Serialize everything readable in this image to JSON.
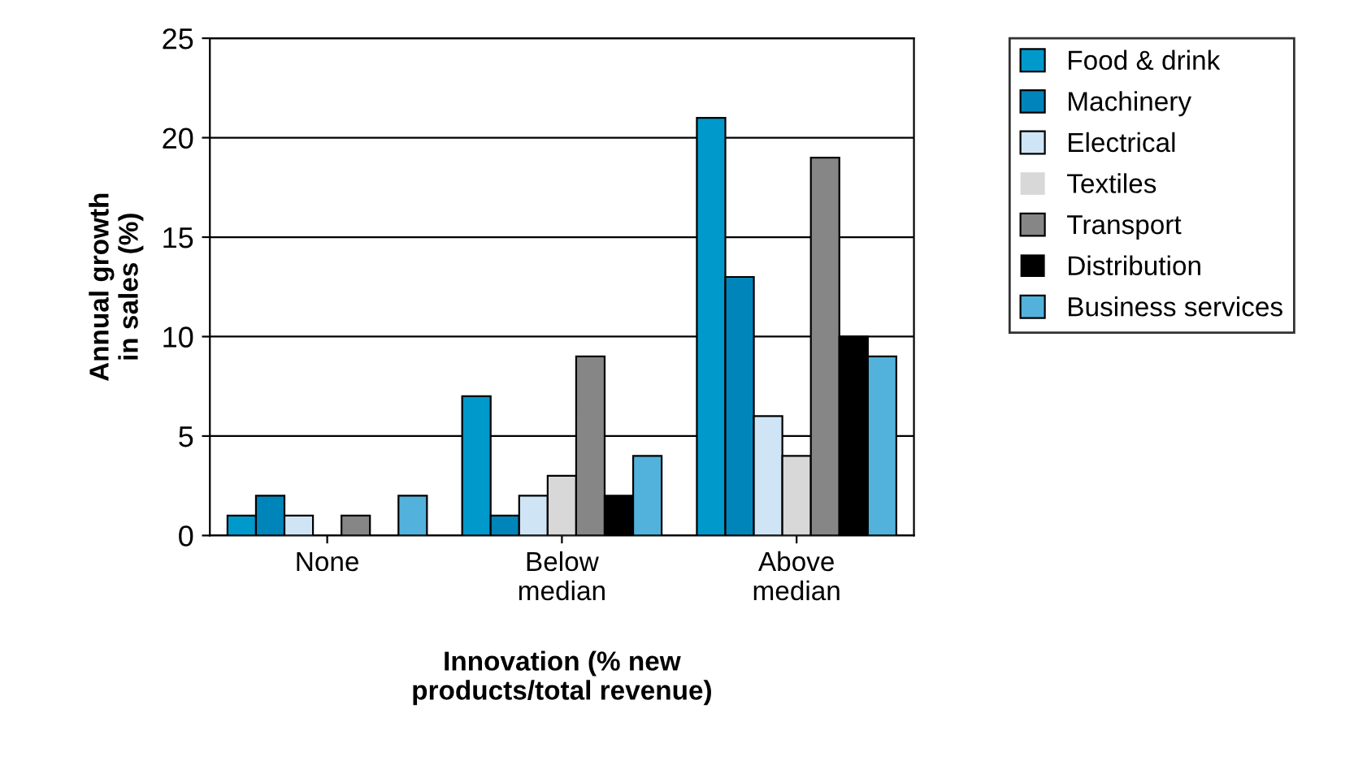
{
  "chart_data": {
    "type": "bar",
    "xlabel": "Innovation (% new\nproducts/total revenue)",
    "ylabel": "Annual growth\nin sales (%)",
    "categories": [
      "None",
      "Below\nmedian",
      "Above\nmedian"
    ],
    "series": [
      {
        "name": "Food & drink",
        "color": "#0099cc",
        "values": [
          1,
          7,
          21
        ]
      },
      {
        "name": "Machinery",
        "color": "#0085bb",
        "values": [
          2,
          1,
          13
        ]
      },
      {
        "name": "Electrical",
        "color": "#cfe5f5",
        "values": [
          1,
          2,
          6
        ]
      },
      {
        "name": "Textiles",
        "color": "#d8d8d8",
        "values": [
          0,
          3,
          4
        ]
      },
      {
        "name": "Transport",
        "color": "#868686",
        "values": [
          1,
          9,
          19
        ]
      },
      {
        "name": "Distribution",
        "color": "#000000",
        "values": [
          0,
          2,
          10
        ]
      },
      {
        "name": "Business services",
        "color": "#52b2dc",
        "values": [
          2,
          4,
          9
        ]
      }
    ],
    "ylim": [
      0,
      25
    ],
    "yticks": [
      0,
      5,
      10,
      15,
      20,
      25
    ],
    "grid": "y",
    "legend": "top right"
  }
}
